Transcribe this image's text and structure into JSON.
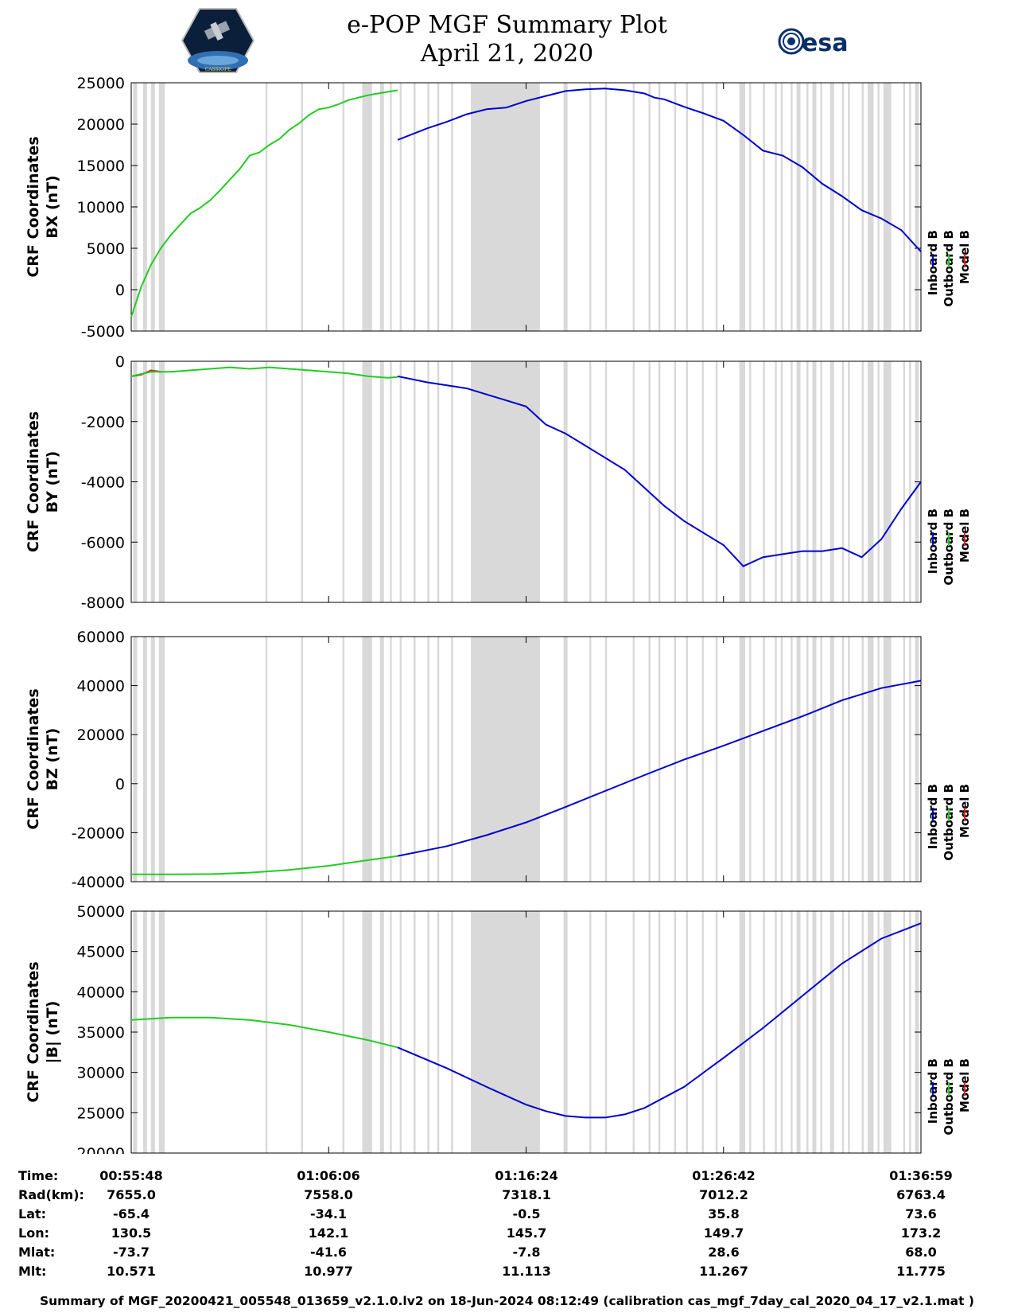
{
  "header": {
    "title_line1": "e-POP MGF Summary Plot",
    "title_line2": "April 21, 2020",
    "left_logo_text": "CASSIOPE",
    "right_logo_text": "esa"
  },
  "legend": [
    "Inboard B",
    "Outboard B",
    "Model B"
  ],
  "colors": {
    "inboard": "#0000cc",
    "outboard": "#22cc22",
    "model": "#dd2222",
    "gap": "#d9d9d9"
  },
  "chart_data": [
    {
      "type": "line",
      "ylabel_line1": "CRF Coordinates",
      "ylabel_line2": "BX (nT)",
      "ylim": [
        -5000,
        25000
      ],
      "yticks": [
        "25000",
        "20000",
        "15000",
        "10000",
        "5000",
        "0",
        "-5000"
      ],
      "series": [
        {
          "name": "Outboard B",
          "t": [
            0,
            0.05,
            0.1,
            0.15,
            0.2,
            0.25,
            0.3,
            0.35,
            0.4,
            0.45,
            0.5,
            0.55,
            0.6,
            0.65,
            0.7,
            0.75,
            0.8,
            0.85,
            0.9,
            0.95,
            1.0,
            1.05,
            1.1,
            1.15,
            1.2,
            1.25,
            1.3,
            1.35
          ],
          "values": [
            -3300,
            300,
            3000,
            5000,
            6600,
            7900,
            9200,
            9900,
            10800,
            12000,
            13300,
            14600,
            16200,
            16600,
            17500,
            18200,
            19300,
            20100,
            21100,
            21800,
            22000,
            22400,
            22900,
            23200,
            23500,
            23700,
            23900,
            24100
          ]
        },
        {
          "name": "Inboard B",
          "t": [
            1.35,
            1.5,
            1.6,
            1.7,
            1.8,
            1.9,
            2.0,
            2.1,
            2.2,
            2.3,
            2.4,
            2.5,
            2.6,
            2.65,
            2.7,
            2.8,
            2.9,
            3.0,
            3.1,
            3.2,
            3.3,
            3.4,
            3.5,
            3.6,
            3.7,
            3.8,
            3.9,
            4.0
          ],
          "values": [
            18100,
            19500,
            20300,
            21200,
            21800,
            22000,
            22800,
            23400,
            24000,
            24200,
            24300,
            24100,
            23700,
            23200,
            23000,
            22100,
            21300,
            20400,
            18700,
            16800,
            16200,
            14800,
            12800,
            11300,
            9600,
            8600,
            7200,
            4600
          ]
        }
      ]
    },
    {
      "type": "line",
      "ylabel_line1": "CRF Coordinates",
      "ylabel_line2": "BY (nT)",
      "ylim": [
        -8000,
        0
      ],
      "yticks": [
        "0",
        "-2000",
        "-4000",
        "-6000",
        "-8000"
      ],
      "series": [
        {
          "name": "Model B",
          "t": [
            0,
            0.05,
            0.1,
            0.15
          ],
          "values": [
            -500,
            -450,
            -300,
            -350
          ]
        },
        {
          "name": "Outboard B",
          "t": [
            0,
            0.1,
            0.2,
            0.3,
            0.4,
            0.5,
            0.6,
            0.7,
            0.8,
            0.9,
            1.0,
            1.1,
            1.2,
            1.3,
            1.35
          ],
          "values": [
            -500,
            -350,
            -350,
            -300,
            -250,
            -200,
            -250,
            -200,
            -250,
            -300,
            -350,
            -400,
            -500,
            -550,
            -520
          ]
        },
        {
          "name": "Inboard B",
          "t": [
            1.35,
            1.5,
            1.6,
            1.7,
            1.8,
            1.9,
            2.0,
            2.1,
            2.2,
            2.3,
            2.4,
            2.5,
            2.6,
            2.7,
            2.8,
            2.9,
            3.0,
            3.1,
            3.2,
            3.3,
            3.4,
            3.5,
            3.6,
            3.7,
            3.8,
            3.9,
            4.0
          ],
          "values": [
            -500,
            -700,
            -800,
            -900,
            -1100,
            -1300,
            -1500,
            -2100,
            -2400,
            -2800,
            -3200,
            -3600,
            -4200,
            -4800,
            -5300,
            -5700,
            -6100,
            -6800,
            -6500,
            -6400,
            -6300,
            -6300,
            -6200,
            -6500,
            -5900,
            -4900,
            -4000
          ]
        }
      ]
    },
    {
      "type": "line",
      "ylabel_line1": "CRF Coordinates",
      "ylabel_line2": "BZ (nT)",
      "ylim": [
        -40000,
        60000
      ],
      "yticks": [
        "60000",
        "40000",
        "20000",
        "0",
        "-20000",
        "-40000"
      ],
      "series": [
        {
          "name": "Outboard B",
          "t": [
            0,
            0.2,
            0.4,
            0.6,
            0.8,
            1.0,
            1.2,
            1.35
          ],
          "values": [
            -37000,
            -37000,
            -36900,
            -36300,
            -35200,
            -33500,
            -31200,
            -29500
          ]
        },
        {
          "name": "Inboard B",
          "t": [
            1.35,
            1.6,
            1.8,
            2.0,
            2.2,
            2.4,
            2.6,
            2.8,
            3.0,
            3.2,
            3.4,
            3.6,
            3.8,
            4.0
          ],
          "values": [
            -29500,
            -25500,
            -21000,
            -15800,
            -9500,
            -3000,
            3500,
            9800,
            15500,
            21500,
            27500,
            34000,
            39000,
            42000
          ]
        }
      ]
    },
    {
      "type": "line",
      "ylabel_line1": "CRF Coordinates",
      "ylabel_line2": "|B| (nT)",
      "ylim": [
        20000,
        50000
      ],
      "yticks": [
        "50000",
        "45000",
        "40000",
        "35000",
        "30000",
        "25000",
        "20000"
      ],
      "series": [
        {
          "name": "Outboard B",
          "t": [
            0,
            0.2,
            0.4,
            0.6,
            0.8,
            1.0,
            1.2,
            1.35
          ],
          "values": [
            36500,
            36800,
            36800,
            36500,
            35900,
            35000,
            34000,
            33100
          ]
        },
        {
          "name": "Inboard B",
          "t": [
            1.35,
            1.6,
            1.8,
            2.0,
            2.1,
            2.2,
            2.3,
            2.4,
            2.5,
            2.6,
            2.8,
            3.0,
            3.2,
            3.4,
            3.6,
            3.8,
            4.0
          ],
          "values": [
            33100,
            30500,
            28200,
            26000,
            25200,
            24600,
            24400,
            24400,
            24800,
            25600,
            28200,
            31800,
            35500,
            39500,
            43500,
            46600,
            48500
          ]
        }
      ]
    }
  ],
  "x_axis": {
    "gaps": [
      [
        0.01,
        0.03
      ],
      [
        0.06,
        0.08
      ],
      [
        0.1,
        0.12
      ],
      [
        0.14,
        0.17
      ],
      [
        0.68,
        0.69
      ],
      [
        0.86,
        0.87
      ],
      [
        1.07,
        1.08
      ],
      [
        1.17,
        1.22
      ],
      [
        1.26,
        1.28
      ],
      [
        1.31,
        1.32
      ],
      [
        1.36,
        1.37
      ],
      [
        1.43,
        1.44
      ],
      [
        1.5,
        1.51
      ],
      [
        1.55,
        1.56
      ],
      [
        1.62,
        1.63
      ],
      [
        1.72,
        1.73
      ],
      [
        1.78,
        1.79
      ],
      [
        1.84,
        1.85
      ],
      [
        1.72,
        2.07
      ],
      [
        2.19,
        2.21
      ],
      [
        2.32,
        2.33
      ],
      [
        2.4,
        2.41
      ],
      [
        2.54,
        2.55
      ],
      [
        2.62,
        2.63
      ],
      [
        2.67,
        2.68
      ],
      [
        2.75,
        2.76
      ],
      [
        2.81,
        2.82
      ],
      [
        2.89,
        2.9
      ],
      [
        2.96,
        2.97
      ],
      [
        3.08,
        3.11
      ],
      [
        3.13,
        3.14
      ],
      [
        3.2,
        3.21
      ],
      [
        3.26,
        3.27
      ],
      [
        3.29,
        3.3
      ],
      [
        3.34,
        3.35
      ],
      [
        3.37,
        3.39
      ],
      [
        3.42,
        3.43
      ],
      [
        3.45,
        3.47
      ],
      [
        3.49,
        3.5
      ],
      [
        3.54,
        3.56
      ],
      [
        3.6,
        3.61
      ],
      [
        3.63,
        3.64
      ],
      [
        3.7,
        3.71
      ],
      [
        3.73,
        3.76
      ],
      [
        3.78,
        3.79
      ],
      [
        3.81,
        3.85
      ],
      [
        3.91,
        3.92
      ],
      [
        3.94,
        3.95
      ],
      [
        3.97,
        3.99
      ]
    ]
  },
  "info_table": {
    "labels": [
      "Time:",
      "Rad(km):",
      "Lat:",
      "Lon:",
      "Mlat:",
      "Mlt:"
    ],
    "columns": [
      [
        "00:55:48",
        "7655.0",
        "-65.4",
        "130.5",
        "-73.7",
        "10.571"
      ],
      [
        "01:06:06",
        "7558.0",
        "-34.1",
        "142.1",
        "-41.6",
        "10.977"
      ],
      [
        "01:16:24",
        "7318.1",
        "-0.5",
        "145.7",
        "-7.8",
        "11.113"
      ],
      [
        "01:26:42",
        "7012.2",
        "35.8",
        "149.7",
        "28.6",
        "11.267"
      ],
      [
        "01:36:59",
        "6763.4",
        "73.6",
        "173.2",
        "68.0",
        "11.775"
      ]
    ]
  },
  "footer": "Summary of MGF_20200421_005548_013659_v2.1.0.lv2 on 18-Jun-2024 08:12:49 (calibration cas_mgf_7day_cal_2020_04_17_v2.1.mat )"
}
